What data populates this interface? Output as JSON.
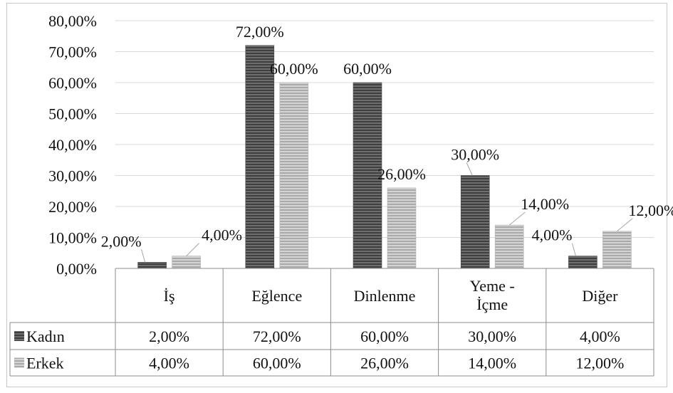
{
  "chart_data": {
    "type": "bar",
    "categories": [
      "İş",
      "Eğlence",
      "Dinlenme",
      "Yeme -\nİçme",
      "Diğer"
    ],
    "series": [
      {
        "name": "Kadın",
        "values": [
          2,
          72,
          60,
          30,
          4
        ],
        "labels": [
          "2,00%",
          "72,00%",
          "60,00%",
          "30,00%",
          "4,00%"
        ],
        "color": "#595959"
      },
      {
        "name": "Erkek",
        "values": [
          4,
          60,
          26,
          14,
          12
        ],
        "labels": [
          "4,00%",
          "60,00%",
          "26,00%",
          "14,00%",
          "12,00%"
        ],
        "color": "#bfbfbf"
      }
    ],
    "ylim": [
      0,
      80
    ],
    "yticks": [
      "0,00%",
      "10,00%",
      "20,00%",
      "30,00%",
      "40,00%",
      "50,00%",
      "60,00%",
      "70,00%",
      "80,00%"
    ],
    "grid": true,
    "legend": "data-table"
  }
}
